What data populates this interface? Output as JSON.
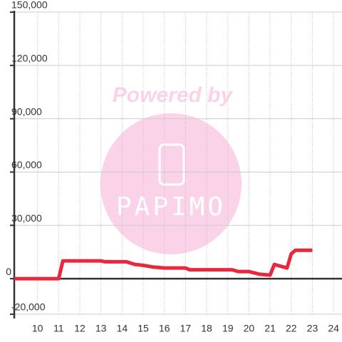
{
  "chart_data": {
    "type": "line",
    "annotations": [
      "Powered by",
      "PAPIMO"
    ],
    "x": [
      8.9,
      11.0,
      11.2,
      13.0,
      13.2,
      14.2,
      14.6,
      15.0,
      15.5,
      16.0,
      17.0,
      17.2,
      19.2,
      19.5,
      20.0,
      20.5,
      21.0,
      21.2,
      21.8,
      22.0,
      22.2,
      23.0
    ],
    "series": [
      {
        "color": "#e8283c",
        "values": [
          0,
          0,
          10000,
          10000,
          9500,
          9500,
          8000,
          7500,
          6500,
          6000,
          6000,
          5000,
          5000,
          4000,
          4000,
          2500,
          2000,
          8000,
          6000,
          14000,
          16000,
          16000
        ]
      }
    ],
    "xlim": [
      8.9,
      24.4
    ],
    "xticks": [
      10,
      11,
      12,
      13,
      14,
      15,
      16,
      17,
      18,
      19,
      20,
      21,
      22,
      23,
      24
    ],
    "ylim": [
      -20000,
      150000
    ],
    "yticks": [
      {
        "value": -20000,
        "label": "-20,000"
      },
      0,
      {
        "value": 30000,
        "label": "30,000"
      },
      {
        "value": 60000,
        "label": "60,000"
      },
      {
        "value": 90000,
        "label": "90,000"
      },
      {
        "value": 120000,
        "label": "120,000"
      },
      {
        "value": 150000,
        "label": "150,000"
      }
    ],
    "grid": true
  }
}
